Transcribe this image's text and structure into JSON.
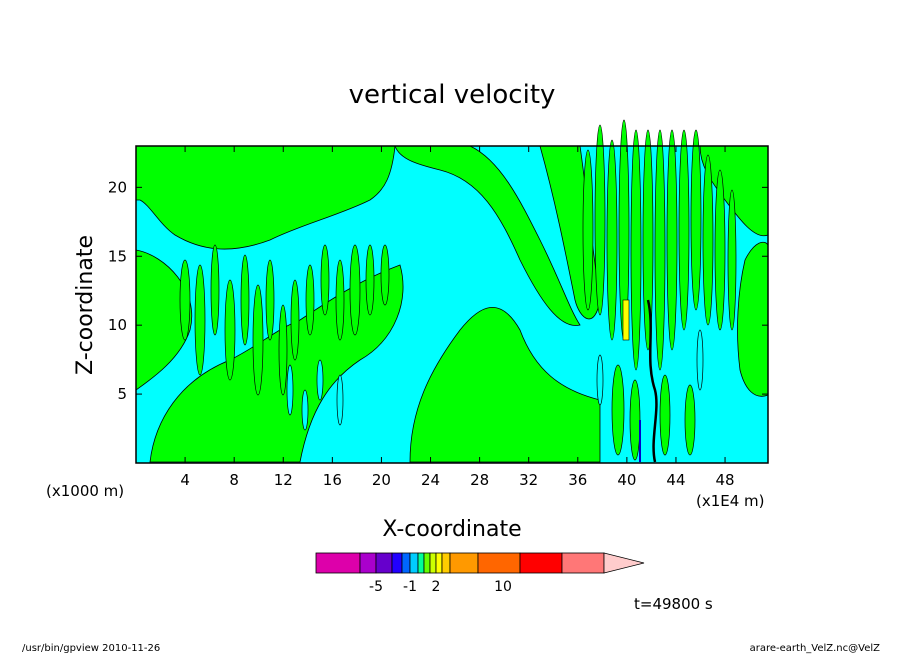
{
  "chart_data": {
    "type": "heatmap",
    "title": "vertical velocity",
    "xlabel": "X-coordinate",
    "ylabel": "Z-coordinate",
    "x_unit_left": "(x1000 m)",
    "x_unit_right": "(x1E4 m)",
    "xlim": [
      0,
      51.5
    ],
    "ylim": [
      0,
      23
    ],
    "x_ticks": [
      "4",
      "8",
      "12",
      "16",
      "20",
      "24",
      "28",
      "32",
      "36",
      "40",
      "44",
      "48"
    ],
    "x_tick_values": [
      4,
      8,
      12,
      16,
      20,
      24,
      28,
      32,
      36,
      40,
      44,
      48
    ],
    "y_ticks": [
      "5",
      "10",
      "15",
      "20"
    ],
    "y_tick_values": [
      5,
      10,
      15,
      20
    ],
    "colors": {
      "positive": "#00ff00",
      "negative": "#00ffff",
      "contour": "#000000",
      "strong_positive": "#ffff00",
      "strong_negative": "#0000cc"
    },
    "colorbar": {
      "colors": [
        "#dd00aa",
        "#aa00cc",
        "#6600cc",
        "#2200ff",
        "#0066ff",
        "#00ccff",
        "#00ff99",
        "#66ff00",
        "#ccff00",
        "#ffff00",
        "#ffcc00",
        "#ff9900",
        "#ff6600",
        "#ff0000",
        "#ff7777",
        "#ffcccc"
      ],
      "labels": [
        "-5",
        "-1",
        "2",
        "10"
      ]
    },
    "time_label": "t=49800 s"
  },
  "footer": {
    "left": "/usr/bin/gpview   2010-11-26",
    "right": "arare-earth_VelZ.nc@VelZ"
  }
}
